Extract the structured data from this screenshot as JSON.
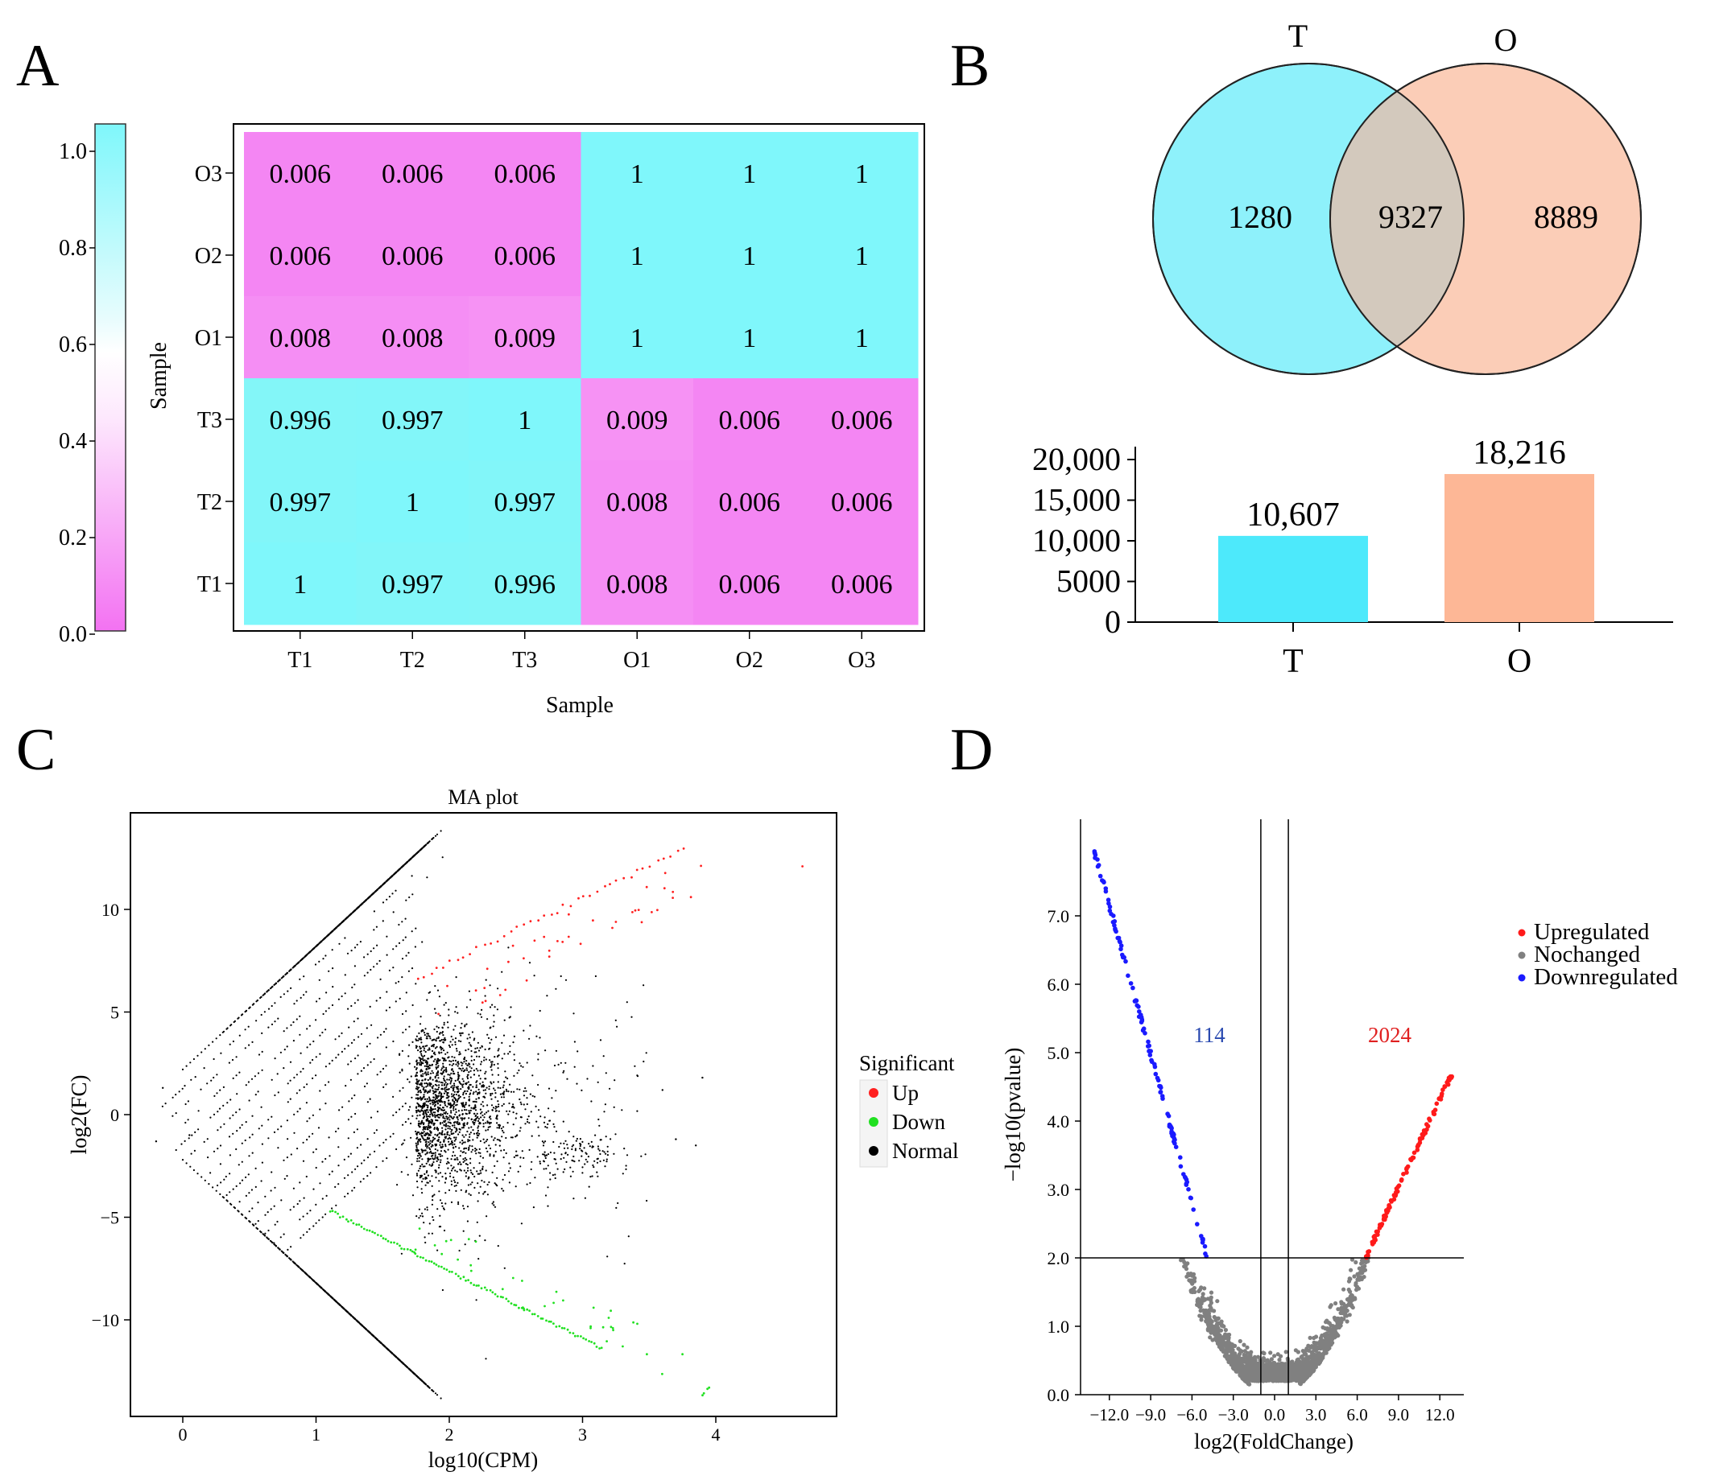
{
  "panel_labels": {
    "a": "A",
    "b": "B",
    "c": "C",
    "d": "D"
  },
  "colors": {
    "cyan": "#7ff7fb",
    "magenta": "#f372f2",
    "venn_t": "#8ef1fb",
    "venn_o": "#fbcdb7",
    "venn_overlap": "#d3c9bd",
    "bar_t": "#4de9fb",
    "bar_o": "#fdb796",
    "up": "#ff2020",
    "down": "#20e020",
    "normal": "#000000",
    "volcano_up": "#ff1a1a",
    "volcano_down": "#1a1aff",
    "volcano_nc": "#808080",
    "count_down": "#2a4ab0",
    "count_up": "#e02020"
  },
  "chart_data": [
    {
      "panel": "A",
      "type": "heatmap",
      "title": "",
      "xlabel": "Sample",
      "ylabel": "Sample",
      "x_categories": [
        "T1",
        "T2",
        "T3",
        "O1",
        "O2",
        "O3"
      ],
      "y_categories": [
        "O3",
        "O2",
        "O1",
        "T3",
        "T2",
        "T1"
      ],
      "values": [
        [
          "0.006",
          "0.006",
          "0.006",
          "1",
          "1",
          "1"
        ],
        [
          "0.006",
          "0.006",
          "0.006",
          "1",
          "1",
          "1"
        ],
        [
          "0.008",
          "0.008",
          "0.009",
          "1",
          "1",
          "1"
        ],
        [
          "0.996",
          "0.997",
          "1",
          "0.009",
          "0.006",
          "0.006"
        ],
        [
          "0.997",
          "1",
          "0.997",
          "0.008",
          "0.006",
          "0.006"
        ],
        [
          "1",
          "0.997",
          "0.996",
          "0.008",
          "0.006",
          "0.006"
        ]
      ],
      "colorbar_ticks": [
        "1.0",
        "0.8",
        "0.6",
        "0.4",
        "0.2",
        "0.0"
      ],
      "colorbar_range": [
        0,
        1.05
      ]
    },
    {
      "panel": "B",
      "type": "venn",
      "sets": [
        "T",
        "O"
      ],
      "counts": {
        "t_only": "1280",
        "both": "9327",
        "o_only": "8889"
      }
    },
    {
      "panel": "B",
      "type": "bar",
      "categories": [
        "T",
        "O"
      ],
      "values": [
        10607,
        18216
      ],
      "value_labels": [
        "10,607",
        "18,216"
      ],
      "yticks": [
        "0",
        "5000",
        "10,000",
        "15,000",
        "20,000"
      ],
      "ylim": [
        0,
        20000
      ]
    },
    {
      "panel": "C",
      "type": "scatter",
      "title": "MA plot",
      "xlabel": "log10(CPM)",
      "ylabel": "log2(FC)",
      "xlim": [
        -0.4,
        4.9
      ],
      "ylim": [
        -14.3,
        14.7
      ],
      "xticks": [
        "0",
        "1",
        "2",
        "3",
        "4"
      ],
      "yticks": [
        "−10",
        "−5",
        "0",
        "5",
        "10"
      ],
      "legend_title": "Significant",
      "legend": [
        "Up",
        "Down",
        "Normal"
      ]
    },
    {
      "panel": "D",
      "type": "scatter",
      "title": "",
      "xlabel": "log2(FoldChange)",
      "ylabel": "−log10(pvalue)",
      "xlim": [
        -14.3,
        14.3
      ],
      "ylim": [
        -0.05,
        8.3
      ],
      "xticks": [
        "−12.0",
        "−9.0",
        "−6.0",
        "−3.0",
        "0.0",
        "3.0",
        "6.0",
        "9.0",
        "12.0"
      ],
      "yticks": [
        "0.0",
        "1.0",
        "2.0",
        "3.0",
        "4.0",
        "5.0",
        "6.0",
        "7.0"
      ],
      "vlines": [
        -1,
        1
      ],
      "hline": 2,
      "counts": {
        "down": "114",
        "up": "2024"
      },
      "legend": [
        "Upregulated",
        "Nochanged",
        "Downregulated"
      ]
    }
  ]
}
